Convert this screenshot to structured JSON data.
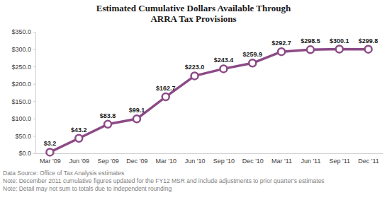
{
  "chart_data": {
    "type": "line",
    "title": "Estimated Cumulative Dollars Available Through\nARRA Tax Provisions",
    "categories": [
      "Mar '09",
      "Jun '09",
      "Sep '09",
      "Dec '09",
      "Mar '10",
      "Jun '10",
      "Sep '10",
      "Dec '10",
      "Mar '11",
      "Jun '11",
      "Sep '11",
      "Dec '11"
    ],
    "values": [
      3.2,
      43.2,
      83.8,
      99.1,
      162.7,
      223.0,
      243.4,
      259.9,
      292.7,
      298.5,
      300.1,
      299.8
    ],
    "value_labels": [
      "$3.2",
      "$43.2",
      "$83.8",
      "$99.1",
      "$162.7",
      "$223.0",
      "$243.4",
      "$259.9",
      "$292.7",
      "$298.5",
      "$300.1",
      "$299.8"
    ],
    "color": "#8c4a86",
    "marker": "circle",
    "data_labels": true,
    "grid": false,
    "ylim": [
      0,
      350
    ],
    "yticks": [
      {
        "value": 0,
        "label": "$0.0"
      },
      {
        "value": 50,
        "label": "$50.0"
      },
      {
        "value": 100,
        "label": "$100.0"
      },
      {
        "value": 150,
        "label": "$150.0"
      },
      {
        "value": 200,
        "label": "$200.0"
      },
      {
        "value": 250,
        "label": "$250.0"
      },
      {
        "value": 300,
        "label": "$300.0"
      },
      {
        "value": 350,
        "label": "$350.0"
      }
    ],
    "annotations": [
      "Data Source: Office of Tax Analysis estimates",
      "Note: December 2011 cumulative figures updated for the FY12 MSR and include adjustments to prior quarter's estimates",
      "Note: Detail may not sum to totals due to independent rounding"
    ]
  }
}
